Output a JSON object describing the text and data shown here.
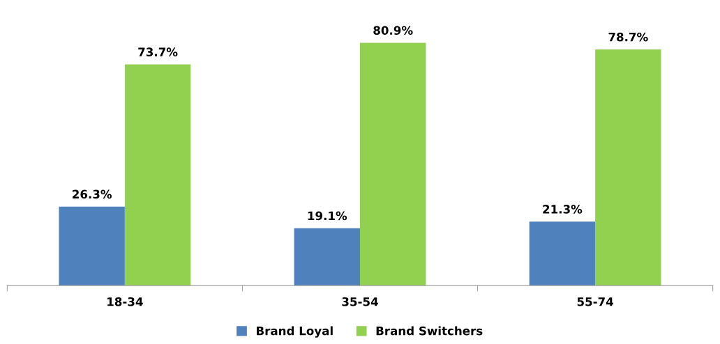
{
  "chart_data": {
    "type": "bar",
    "categories": [
      "18-34",
      "35-54",
      "55-74"
    ],
    "series": [
      {
        "name": "Brand Loyal",
        "color": "#4f81bd",
        "values": [
          26.3,
          19.1,
          21.3
        ],
        "value_labels": [
          "26.3%",
          "19.1%",
          "21.3%"
        ]
      },
      {
        "name": "Brand Switchers",
        "color": "#92d050",
        "values": [
          73.7,
          80.9,
          78.7
        ],
        "value_labels": [
          "73.7%",
          "80.9%",
          "78.7%"
        ]
      }
    ],
    "tick_labels": "x",
    "grid": false,
    "legend": "bottom"
  }
}
